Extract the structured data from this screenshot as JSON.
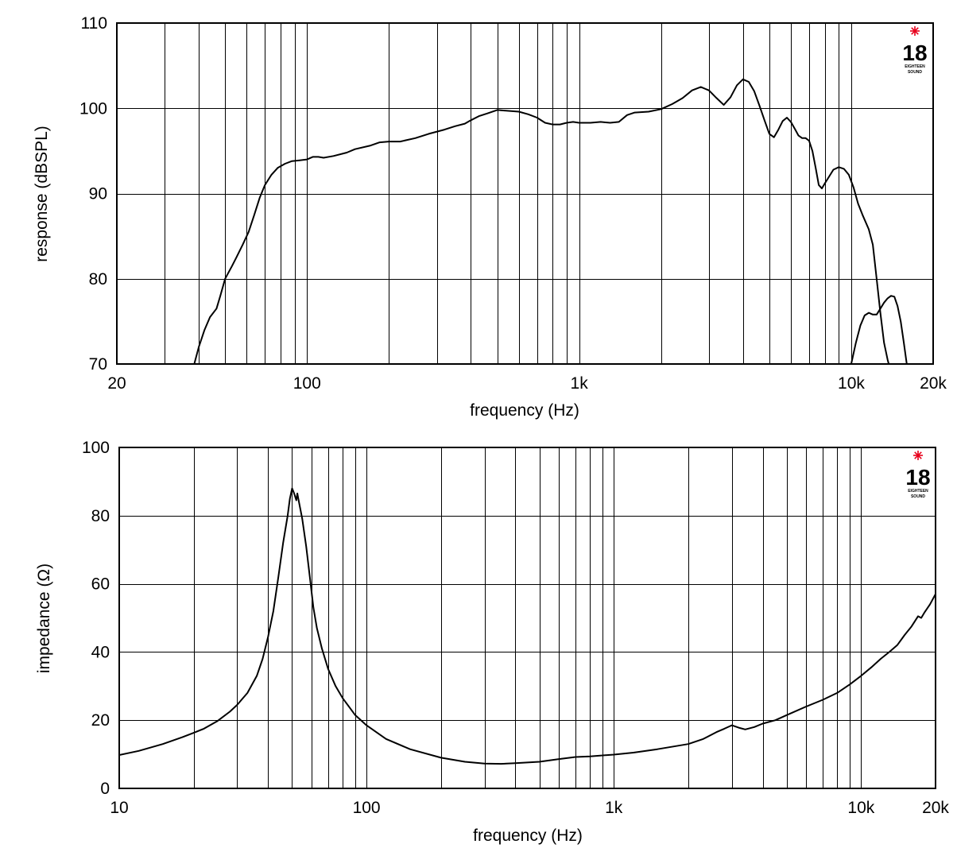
{
  "chart_data": [
    {
      "type": "line",
      "title": "",
      "xlabel": "frequency (Hz)",
      "ylabel": "response (dBSPL)",
      "x_scale": "log",
      "xlim": [
        20,
        20000
      ],
      "ylim": [
        70,
        110
      ],
      "grid": true,
      "x_tick_labels": [
        {
          "value": 20,
          "label": "20"
        },
        {
          "value": 100,
          "label": "100"
        },
        {
          "value": 1000,
          "label": "1k"
        },
        {
          "value": 10000,
          "label": "10k"
        },
        {
          "value": 20000,
          "label": "20k"
        }
      ],
      "y_ticks": [
        70,
        80,
        90,
        100,
        110
      ],
      "logo": {
        "number": "18",
        "line1": "EIGHTEEN",
        "line2": "SOUND",
        "star_color": "#e8001c"
      },
      "series": [
        {
          "segments": [
            [
              [
                38.5,
                70
              ],
              [
                40,
                72
              ],
              [
                42,
                74
              ],
              [
                44,
                75.5
              ],
              [
                46.5,
                76.5
              ],
              [
                48,
                78
              ],
              [
                50,
                80
              ],
              [
                53,
                81.5
              ],
              [
                55,
                82.5
              ],
              [
                58,
                84
              ],
              [
                61,
                85.5
              ],
              [
                64,
                87.5
              ],
              [
                67,
                89.5
              ],
              [
                70,
                91
              ],
              [
                74,
                92.2
              ],
              [
                78,
                93
              ],
              [
                83,
                93.5
              ],
              [
                88,
                93.8
              ],
              [
                94,
                93.9
              ],
              [
                100,
                94
              ],
              [
                105,
                94.3
              ],
              [
                110,
                94.3
              ],
              [
                115,
                94.2
              ],
              [
                125,
                94.4
              ],
              [
                140,
                94.8
              ],
              [
                150,
                95.2
              ],
              [
                170,
                95.6
              ],
              [
                185,
                96
              ],
              [
                200,
                96.1
              ],
              [
                220,
                96.1
              ],
              [
                250,
                96.5
              ],
              [
                280,
                97
              ],
              [
                320,
                97.5
              ],
              [
                350,
                97.9
              ],
              [
                380,
                98.2
              ],
              [
                400,
                98.6
              ],
              [
                430,
                99.1
              ],
              [
                460,
                99.4
              ],
              [
                500,
                99.8
              ],
              [
                550,
                99.7
              ],
              [
                600,
                99.6
              ],
              [
                650,
                99.3
              ],
              [
                700,
                98.9
              ],
              [
                750,
                98.3
              ],
              [
                800,
                98.1
              ],
              [
                850,
                98.1
              ],
              [
                900,
                98.3
              ],
              [
                950,
                98.4
              ],
              [
                1000,
                98.3
              ],
              [
                1100,
                98.3
              ],
              [
                1200,
                98.4
              ],
              [
                1300,
                98.3
              ],
              [
                1400,
                98.4
              ],
              [
                1500,
                99.2
              ],
              [
                1600,
                99.5
              ],
              [
                1800,
                99.6
              ],
              [
                2000,
                99.9
              ],
              [
                2200,
                100.5
              ],
              [
                2400,
                101.2
              ],
              [
                2600,
                102.1
              ],
              [
                2800,
                102.5
              ],
              [
                3000,
                102.1
              ],
              [
                3200,
                101.2
              ],
              [
                3400,
                100.4
              ],
              [
                3600,
                101.3
              ],
              [
                3800,
                102.7
              ],
              [
                4000,
                103.4
              ],
              [
                4200,
                103.1
              ],
              [
                4400,
                102
              ],
              [
                4600,
                100.3
              ],
              [
                4800,
                98.6
              ],
              [
                5000,
                97
              ],
              [
                5200,
                96.6
              ],
              [
                5400,
                97.5
              ],
              [
                5600,
                98.5
              ],
              [
                5800,
                98.9
              ],
              [
                6000,
                98.4
              ],
              [
                6200,
                97.6
              ],
              [
                6400,
                96.8
              ],
              [
                6600,
                96.5
              ],
              [
                6800,
                96.5
              ],
              [
                7000,
                96.2
              ],
              [
                7200,
                95
              ],
              [
                7400,
                93
              ],
              [
                7600,
                91
              ],
              [
                7800,
                90.6
              ],
              [
                8000,
                91.2
              ],
              [
                8300,
                92
              ],
              [
                8600,
                92.8
              ],
              [
                9000,
                93.1
              ],
              [
                9400,
                92.9
              ],
              [
                9800,
                92.2
              ],
              [
                10200,
                90.7
              ],
              [
                10600,
                88.8
              ],
              [
                11000,
                87.5
              ],
              [
                11600,
                85.8
              ],
              [
                12000,
                84
              ],
              [
                12400,
                80
              ],
              [
                12800,
                76
              ],
              [
                13200,
                72.5
              ],
              [
                13600,
                70.5
              ],
              [
                14000,
                69
              ]
            ],
            [
              [
                10000,
                70
              ],
              [
                10400,
                72.5
              ],
              [
                10800,
                74.5
              ],
              [
                11200,
                75.7
              ],
              [
                11600,
                76
              ],
              [
                12000,
                75.8
              ],
              [
                12400,
                75.8
              ],
              [
                12800,
                76.5
              ],
              [
                13200,
                77.2
              ],
              [
                13600,
                77.7
              ],
              [
                14000,
                78
              ],
              [
                14400,
                77.9
              ],
              [
                14800,
                76.8
              ],
              [
                15200,
                75
              ],
              [
                15600,
                72.5
              ],
              [
                16000,
                70
              ]
            ]
          ]
        }
      ]
    },
    {
      "type": "line",
      "title": "",
      "xlabel": "frequency (Hz)",
      "ylabel": "impedance (Ω)",
      "x_scale": "log",
      "xlim": [
        10,
        20000
      ],
      "ylim": [
        0,
        100
      ],
      "grid": true,
      "x_tick_labels": [
        {
          "value": 10,
          "label": "10"
        },
        {
          "value": 100,
          "label": "100"
        },
        {
          "value": 1000,
          "label": "1k"
        },
        {
          "value": 10000,
          "label": "10k"
        },
        {
          "value": 20000,
          "label": "20k"
        }
      ],
      "y_ticks": [
        0,
        20,
        40,
        60,
        80,
        100
      ],
      "logo": {
        "number": "18",
        "line1": "EIGHTEEN",
        "line2": "SOUND",
        "star_color": "#e8001c"
      },
      "series": [
        {
          "segments": [
            [
              [
                10,
                9.8
              ],
              [
                12,
                11
              ],
              [
                15,
                13
              ],
              [
                18,
                15
              ],
              [
                20,
                16.3
              ],
              [
                22,
                17.5
              ],
              [
                25,
                19.8
              ],
              [
                28,
                22.5
              ],
              [
                30,
                24.5
              ],
              [
                33,
                28
              ],
              [
                36,
                33
              ],
              [
                38,
                38
              ],
              [
                40,
                44.5
              ],
              [
                42,
                52
              ],
              [
                44,
                62
              ],
              [
                46,
                72
              ],
              [
                48,
                80
              ],
              [
                49,
                85
              ],
              [
                50,
                88
              ],
              [
                51,
                86.5
              ],
              [
                52,
                84.5
              ],
              [
                52.5,
                86.5
              ],
              [
                53,
                85
              ],
              [
                55,
                79
              ],
              [
                57,
                71
              ],
              [
                59,
                62
              ],
              [
                61,
                53
              ],
              [
                63,
                47
              ],
              [
                66,
                41
              ],
              [
                70,
                35
              ],
              [
                75,
                30
              ],
              [
                80,
                26.5
              ],
              [
                90,
                21.5
              ],
              [
                100,
                18.5
              ],
              [
                120,
                14.5
              ],
              [
                150,
                11.5
              ],
              [
                200,
                9
              ],
              [
                250,
                7.8
              ],
              [
                300,
                7.3
              ],
              [
                350,
                7.2
              ],
              [
                400,
                7.4
              ],
              [
                500,
                7.8
              ],
              [
                600,
                8.6
              ],
              [
                700,
                9.2
              ],
              [
                800,
                9.4
              ],
              [
                1000,
                9.9
              ],
              [
                1200,
                10.5
              ],
              [
                1500,
                11.5
              ],
              [
                2000,
                13
              ],
              [
                2300,
                14.5
              ],
              [
                2600,
                16.5
              ],
              [
                2800,
                17.5
              ],
              [
                3000,
                18.5
              ],
              [
                3200,
                17.8
              ],
              [
                3400,
                17.3
              ],
              [
                3700,
                18
              ],
              [
                4000,
                19
              ],
              [
                4500,
                20
              ],
              [
                5000,
                21.5
              ],
              [
                6000,
                24
              ],
              [
                7000,
                26
              ],
              [
                8000,
                28
              ],
              [
                9000,
                30.5
              ],
              [
                10000,
                33
              ],
              [
                11000,
                35.5
              ],
              [
                12000,
                38
              ],
              [
                13000,
                40
              ],
              [
                14000,
                42
              ],
              [
                15000,
                45
              ],
              [
                16000,
                47.5
              ],
              [
                17000,
                50.5
              ],
              [
                17500,
                50
              ],
              [
                18000,
                51.5
              ],
              [
                19000,
                54
              ],
              [
                20000,
                57
              ]
            ]
          ]
        }
      ]
    }
  ]
}
